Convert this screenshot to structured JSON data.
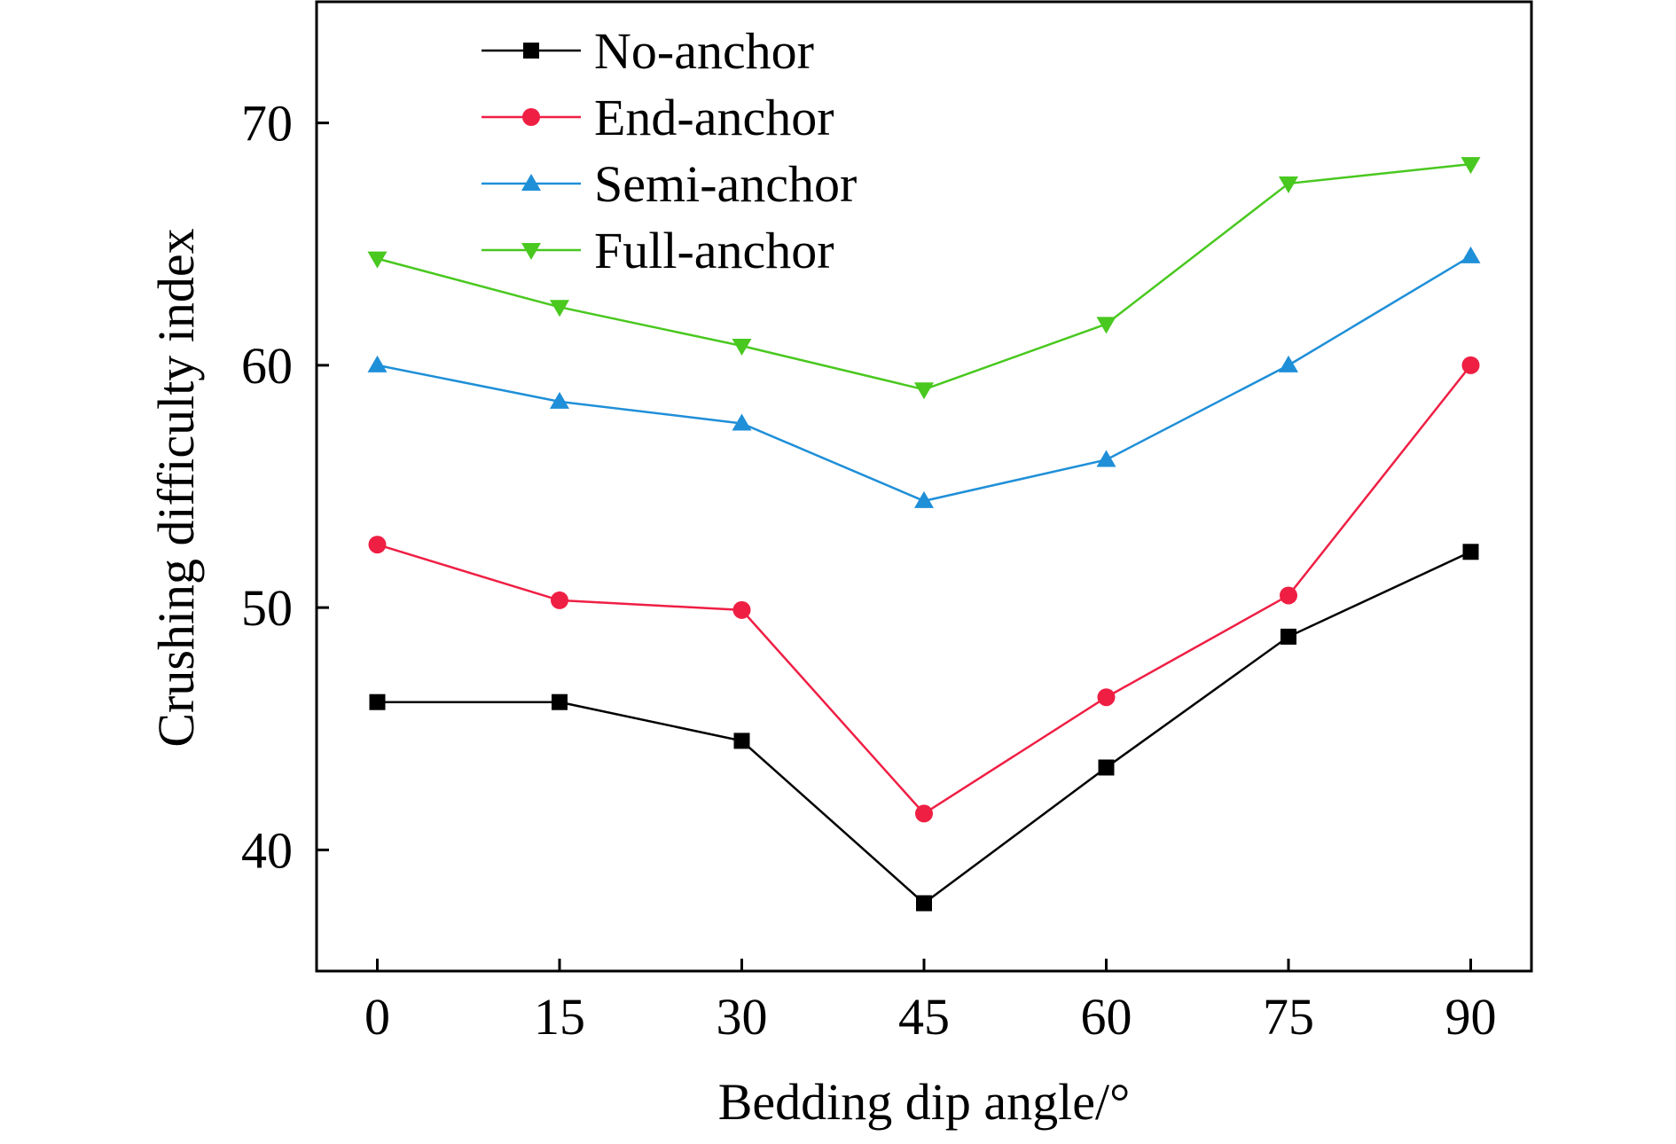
{
  "chart_data": {
    "type": "line",
    "xlabel": "Bedding dip angle/°",
    "ylabel": "Crushing difficulty index",
    "x": [
      0,
      15,
      30,
      45,
      60,
      75,
      90
    ],
    "xlim": [
      -5,
      95
    ],
    "ylim": [
      35,
      75
    ],
    "yticks": [
      40,
      50,
      60,
      70
    ],
    "grid": false,
    "legend_position": "top-left",
    "series": [
      {
        "name": "No-anchor",
        "color": "#000000",
        "marker": "square",
        "values": [
          46.1,
          46.1,
          44.5,
          37.8,
          43.4,
          48.8,
          52.3
        ]
      },
      {
        "name": "End-anchor",
        "color": "#ef1f44",
        "marker": "circle",
        "values": [
          52.6,
          50.3,
          49.9,
          41.5,
          46.3,
          50.5,
          60.0
        ]
      },
      {
        "name": "Semi-anchor",
        "color": "#1f8fd8",
        "marker": "triangle-up",
        "values": [
          60.0,
          58.5,
          57.6,
          54.4,
          56.1,
          60.0,
          64.5
        ]
      },
      {
        "name": "Full-anchor",
        "color": "#49c81f",
        "marker": "triangle-down",
        "values": [
          64.4,
          62.4,
          60.8,
          59.0,
          61.7,
          67.5,
          68.3
        ]
      }
    ]
  }
}
